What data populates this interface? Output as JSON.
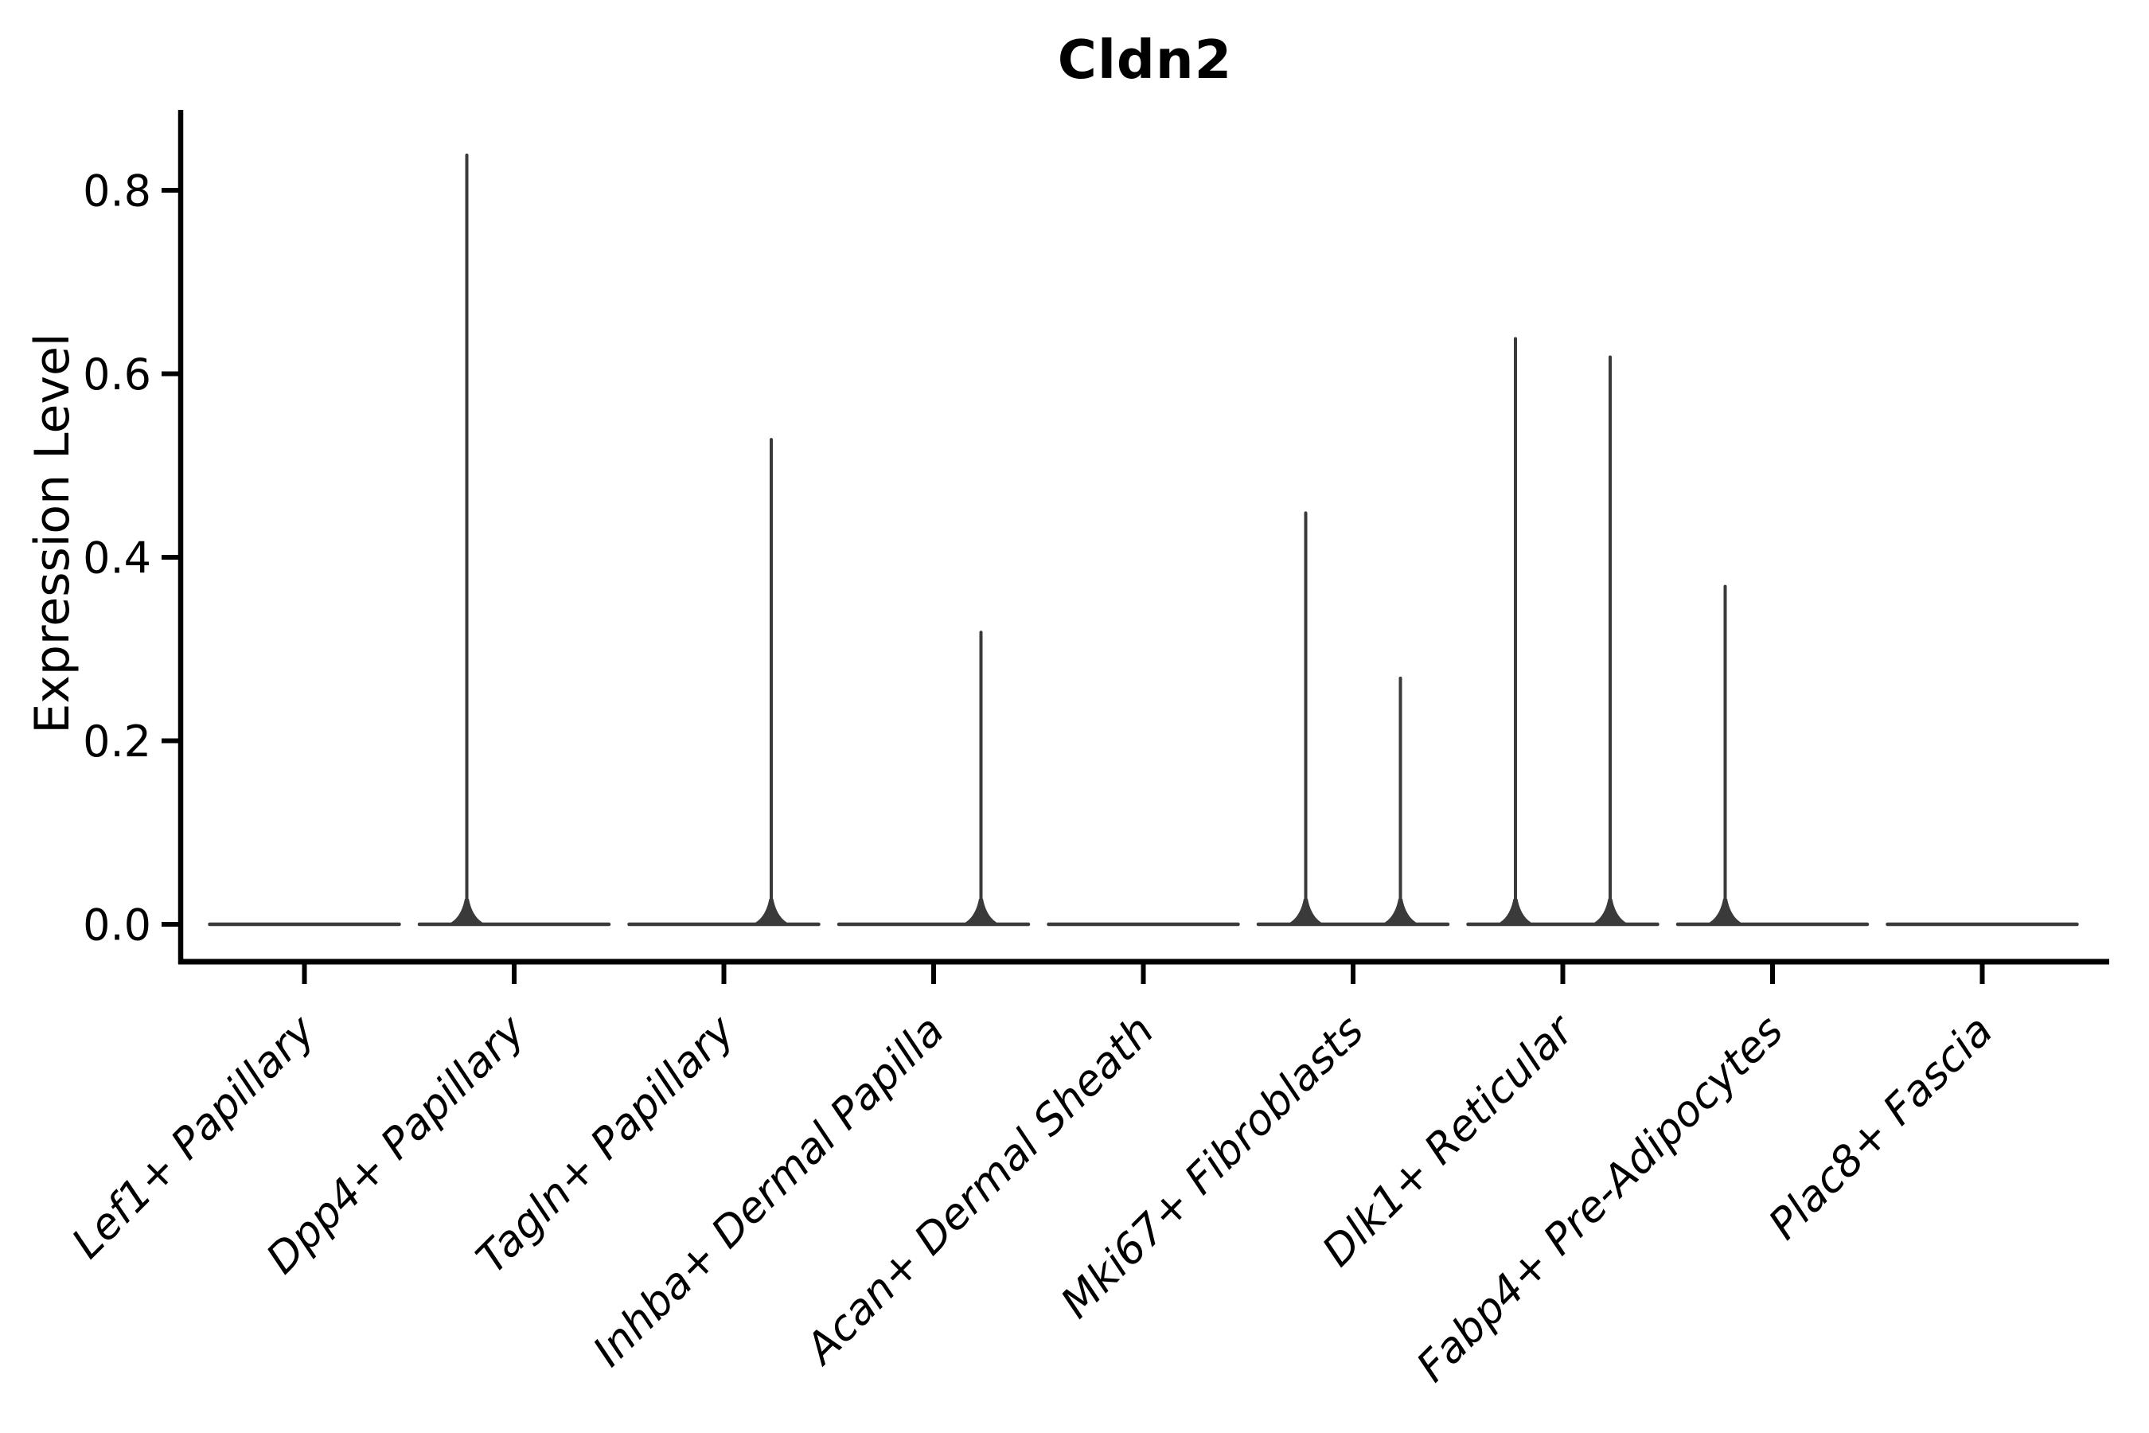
{
  "figure": {
    "background": "#ffffff"
  },
  "chart_data": {
    "type": "violin",
    "title": "Cldn2",
    "ylabel": "Expression Level",
    "xlabel": "",
    "categories": [
      "Lef1+ Papillary",
      "Dpp4+ Papillary",
      "Tagln+ Papillary",
      "Inhba+ Dermal Papilla",
      "Acan+ Dermal Sheath",
      "Mki67+ Fibroblasts",
      "Dlk1+ Reticular",
      "Fabp4+ Pre-Adipocytes",
      "Plac8+ Fascia"
    ],
    "y_ticks": [
      0.0,
      0.2,
      0.4,
      0.6,
      0.8
    ],
    "y_tick_labels": [
      "0.0",
      "0.2",
      "0.4",
      "0.6",
      "0.8"
    ],
    "ylim": [
      -0.042,
      0.885
    ],
    "grid": false,
    "legend_position": "none",
    "baseline_value": 0.0,
    "violins_per_category": 2,
    "series": [
      {
        "position": "left",
        "max_values": [
          0,
          0.84,
          0,
          0,
          0,
          0.45,
          0.64,
          0.37,
          0
        ]
      },
      {
        "position": "right",
        "max_values": [
          0,
          0,
          0.53,
          0.32,
          0,
          0.27,
          0.62,
          0,
          0
        ]
      }
    ],
    "colors": {
      "violin_stroke": "#3a3a3a",
      "axis": "#000000",
      "text": "#000000",
      "background": "#ffffff"
    }
  }
}
